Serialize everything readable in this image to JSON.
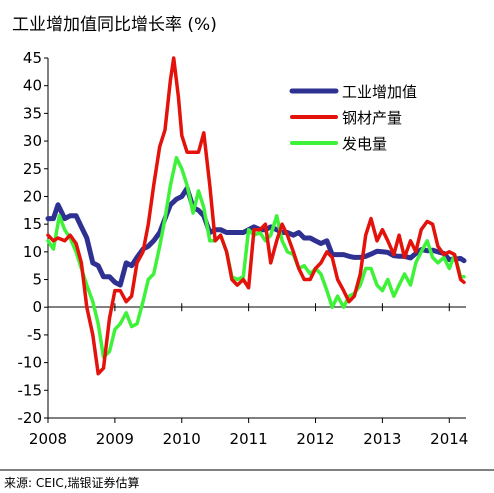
{
  "title": "工业增加值同比增长率 (%)",
  "source": "来源: CEIC,瑞银证券估算",
  "chart_data": {
    "type": "line",
    "title": "工业增加值同比增长率 (%)",
    "xlabel": "",
    "ylabel": "",
    "xlim": [
      2008.0,
      2014.25
    ],
    "ylim": [
      -20,
      45
    ],
    "x_ticks": [
      "2008",
      "2009",
      "2010",
      "2011",
      "2012",
      "2013",
      "2014"
    ],
    "y_ticks": [
      -20,
      -15,
      -10,
      -5,
      0,
      5,
      10,
      15,
      20,
      25,
      30,
      35,
      40,
      45
    ],
    "grid": false,
    "legend": "top-right",
    "series": [
      {
        "name": "工业增加值",
        "color": "#2e3192",
        "points": [
          [
            2008.0,
            16
          ],
          [
            2008.08,
            16
          ],
          [
            2008.15,
            18.5
          ],
          [
            2008.25,
            16
          ],
          [
            2008.33,
            16.5
          ],
          [
            2008.42,
            16.5
          ],
          [
            2008.5,
            14.5
          ],
          [
            2008.58,
            12.5
          ],
          [
            2008.67,
            8
          ],
          [
            2008.75,
            7.5
          ],
          [
            2008.83,
            5.5
          ],
          [
            2008.92,
            5.5
          ],
          [
            2009.0,
            4.5
          ],
          [
            2009.08,
            4
          ],
          [
            2009.17,
            8
          ],
          [
            2009.25,
            7.5
          ],
          [
            2009.33,
            9
          ],
          [
            2009.42,
            10.5
          ],
          [
            2009.5,
            11
          ],
          [
            2009.58,
            12
          ],
          [
            2009.67,
            13.5
          ],
          [
            2009.75,
            16
          ],
          [
            2009.83,
            18.5
          ],
          [
            2009.92,
            19.5
          ],
          [
            2010.0,
            20
          ],
          [
            2010.08,
            21.5
          ],
          [
            2010.17,
            18
          ],
          [
            2010.25,
            17.5
          ],
          [
            2010.33,
            16.5
          ],
          [
            2010.42,
            13.5
          ],
          [
            2010.5,
            14
          ],
          [
            2010.58,
            14
          ],
          [
            2010.67,
            13.5
          ],
          [
            2010.75,
            13.5
          ],
          [
            2010.83,
            13.5
          ],
          [
            2010.92,
            13.5
          ],
          [
            2011.0,
            14
          ],
          [
            2011.08,
            14.5
          ],
          [
            2011.17,
            14
          ],
          [
            2011.25,
            14
          ],
          [
            2011.33,
            14.5
          ],
          [
            2011.42,
            14
          ],
          [
            2011.5,
            13.5
          ],
          [
            2011.58,
            13.5
          ],
          [
            2011.67,
            13
          ],
          [
            2011.75,
            13.5
          ],
          [
            2011.83,
            12.5
          ],
          [
            2011.92,
            12.5
          ],
          [
            2012.0,
            12
          ],
          [
            2012.08,
            11.5
          ],
          [
            2012.17,
            12
          ],
          [
            2012.25,
            9.5
          ],
          [
            2012.33,
            9.5
          ],
          [
            2012.42,
            9.5
          ],
          [
            2012.5,
            9.2
          ],
          [
            2012.58,
            9
          ],
          [
            2012.67,
            9
          ],
          [
            2012.75,
            9.2
          ],
          [
            2012.83,
            9.6
          ],
          [
            2012.92,
            10.1
          ],
          [
            2013.0,
            10
          ],
          [
            2013.08,
            9.9
          ],
          [
            2013.17,
            9.3
          ],
          [
            2013.25,
            9.2
          ],
          [
            2013.33,
            9.2
          ],
          [
            2013.42,
            8.9
          ],
          [
            2013.5,
            9.7
          ],
          [
            2013.58,
            10.4
          ],
          [
            2013.67,
            10.2
          ],
          [
            2013.75,
            10.3
          ],
          [
            2013.83,
            10
          ],
          [
            2013.92,
            9.7
          ],
          [
            2014.0,
            8.6
          ],
          [
            2014.08,
            8.7
          ],
          [
            2014.17,
            8.8
          ],
          [
            2014.22,
            8.4
          ]
        ]
      },
      {
        "name": "钢材产量",
        "color": "#e3120b",
        "points": [
          [
            2008.0,
            13
          ],
          [
            2008.08,
            12
          ],
          [
            2008.15,
            12.5
          ],
          [
            2008.25,
            12
          ],
          [
            2008.33,
            13
          ],
          [
            2008.42,
            11.5
          ],
          [
            2008.5,
            8
          ],
          [
            2008.58,
            0
          ],
          [
            2008.67,
            -5
          ],
          [
            2008.75,
            -12
          ],
          [
            2008.83,
            -11
          ],
          [
            2008.92,
            -2
          ],
          [
            2009.0,
            3
          ],
          [
            2009.08,
            3
          ],
          [
            2009.17,
            1
          ],
          [
            2009.25,
            2
          ],
          [
            2009.33,
            8
          ],
          [
            2009.42,
            10
          ],
          [
            2009.5,
            15
          ],
          [
            2009.58,
            22
          ],
          [
            2009.67,
            29
          ],
          [
            2009.75,
            32
          ],
          [
            2009.83,
            41
          ],
          [
            2009.88,
            45
          ],
          [
            2009.95,
            38
          ],
          [
            2010.0,
            31
          ],
          [
            2010.08,
            28
          ],
          [
            2010.17,
            28
          ],
          [
            2010.25,
            28
          ],
          [
            2010.33,
            31.5
          ],
          [
            2010.42,
            22
          ],
          [
            2010.5,
            12
          ],
          [
            2010.58,
            13
          ],
          [
            2010.67,
            10
          ],
          [
            2010.75,
            5
          ],
          [
            2010.83,
            4
          ],
          [
            2010.92,
            5
          ],
          [
            2011.0,
            3.5
          ],
          [
            2011.08,
            14
          ],
          [
            2011.17,
            14
          ],
          [
            2011.25,
            15
          ],
          [
            2011.33,
            8
          ],
          [
            2011.42,
            12
          ],
          [
            2011.5,
            15
          ],
          [
            2011.58,
            13
          ],
          [
            2011.67,
            10
          ],
          [
            2011.75,
            7
          ],
          [
            2011.83,
            5
          ],
          [
            2011.92,
            5
          ],
          [
            2012.0,
            7
          ],
          [
            2012.08,
            8
          ],
          [
            2012.17,
            10
          ],
          [
            2012.25,
            9
          ],
          [
            2012.33,
            5
          ],
          [
            2012.42,
            3
          ],
          [
            2012.5,
            1
          ],
          [
            2012.58,
            2
          ],
          [
            2012.67,
            6
          ],
          [
            2012.75,
            13
          ],
          [
            2012.83,
            16
          ],
          [
            2012.92,
            12
          ],
          [
            2013.0,
            14
          ],
          [
            2013.08,
            12
          ],
          [
            2013.17,
            9.5
          ],
          [
            2013.25,
            13
          ],
          [
            2013.33,
            9
          ],
          [
            2013.42,
            12
          ],
          [
            2013.5,
            10
          ],
          [
            2013.58,
            14
          ],
          [
            2013.67,
            15.5
          ],
          [
            2013.75,
            15
          ],
          [
            2013.83,
            11
          ],
          [
            2013.92,
            9.5
          ],
          [
            2014.0,
            10
          ],
          [
            2014.08,
            9.5
          ],
          [
            2014.17,
            5
          ],
          [
            2014.22,
            4.5
          ]
        ]
      },
      {
        "name": "发电量",
        "color": "#3ef23a",
        "points": [
          [
            2008.0,
            12
          ],
          [
            2008.08,
            10.5
          ],
          [
            2008.17,
            16.5
          ],
          [
            2008.25,
            14
          ],
          [
            2008.33,
            12.5
          ],
          [
            2008.42,
            10
          ],
          [
            2008.5,
            7
          ],
          [
            2008.58,
            4
          ],
          [
            2008.67,
            1
          ],
          [
            2008.75,
            -3
          ],
          [
            2008.83,
            -9
          ],
          [
            2008.92,
            -8
          ],
          [
            2009.0,
            -4
          ],
          [
            2009.08,
            -3
          ],
          [
            2009.17,
            -1
          ],
          [
            2009.25,
            -3.5
          ],
          [
            2009.33,
            -3
          ],
          [
            2009.42,
            1
          ],
          [
            2009.5,
            5
          ],
          [
            2009.58,
            6
          ],
          [
            2009.67,
            11
          ],
          [
            2009.75,
            16
          ],
          [
            2009.83,
            22
          ],
          [
            2009.92,
            27
          ],
          [
            2010.0,
            25
          ],
          [
            2010.08,
            22
          ],
          [
            2010.17,
            17
          ],
          [
            2010.25,
            21
          ],
          [
            2010.33,
            18
          ],
          [
            2010.42,
            12
          ],
          [
            2010.5,
            12
          ],
          [
            2010.58,
            13
          ],
          [
            2010.67,
            10
          ],
          [
            2010.75,
            5.5
          ],
          [
            2010.83,
            5
          ],
          [
            2010.92,
            5.5
          ],
          [
            2011.0,
            14
          ],
          [
            2011.08,
            13
          ],
          [
            2011.17,
            13.5
          ],
          [
            2011.25,
            12
          ],
          [
            2011.33,
            13
          ],
          [
            2011.42,
            16.5
          ],
          [
            2011.5,
            12
          ],
          [
            2011.58,
            10
          ],
          [
            2011.67,
            9.5
          ],
          [
            2011.75,
            7
          ],
          [
            2011.83,
            7.5
          ],
          [
            2011.92,
            6
          ],
          [
            2012.0,
            7
          ],
          [
            2012.08,
            6
          ],
          [
            2012.17,
            3
          ],
          [
            2012.25,
            0
          ],
          [
            2012.33,
            2
          ],
          [
            2012.42,
            0
          ],
          [
            2012.5,
            2
          ],
          [
            2012.58,
            2.5
          ],
          [
            2012.67,
            4
          ],
          [
            2012.75,
            7
          ],
          [
            2012.83,
            7
          ],
          [
            2012.92,
            4
          ],
          [
            2013.0,
            3
          ],
          [
            2013.08,
            5
          ],
          [
            2013.17,
            2
          ],
          [
            2013.25,
            4
          ],
          [
            2013.33,
            6
          ],
          [
            2013.42,
            4
          ],
          [
            2013.5,
            8
          ],
          [
            2013.58,
            10
          ],
          [
            2013.67,
            12
          ],
          [
            2013.75,
            9
          ],
          [
            2013.83,
            8
          ],
          [
            2013.92,
            9
          ],
          [
            2014.0,
            7
          ],
          [
            2014.08,
            9.5
          ],
          [
            2014.17,
            5.5
          ],
          [
            2014.22,
            5.5
          ]
        ]
      }
    ]
  }
}
